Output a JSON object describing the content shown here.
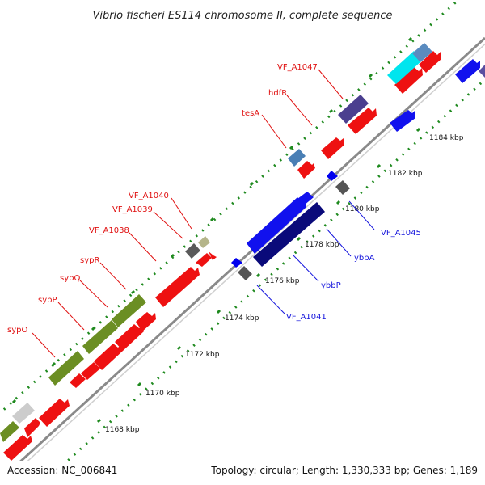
{
  "title": "Vibrio fischeri ES114 chromosome II, complete sequence",
  "footer": {
    "accession": "Accession: NC_006841",
    "topology": "Topology: circular; Length: 1,330,333 bp; Genes: 1,189"
  },
  "colors": {
    "background": "#ffffff",
    "backbone": "#8a8a8a",
    "tick": "#1f8a1f",
    "label_top": "#e01010",
    "label_bottom": "#1515dd"
  },
  "kbp_labels": [
    "1168 kbp",
    "1170 kbp",
    "1172 kbp",
    "1174 kbp",
    "1176 kbp",
    "1178 kbp",
    "1180 kbp",
    "1182 kbp",
    "1184 kbp"
  ],
  "gene_labels_top": [
    "sypO",
    "sypP",
    "sypQ",
    "sypR",
    "VF_A1038",
    "VF_A1039",
    "VF_A1040",
    "tesA",
    "hdfR",
    "VF_A1047"
  ],
  "gene_labels_bottom": [
    "VF_A1041",
    "ybbP",
    "ybbA",
    "VF_A1045"
  ]
}
